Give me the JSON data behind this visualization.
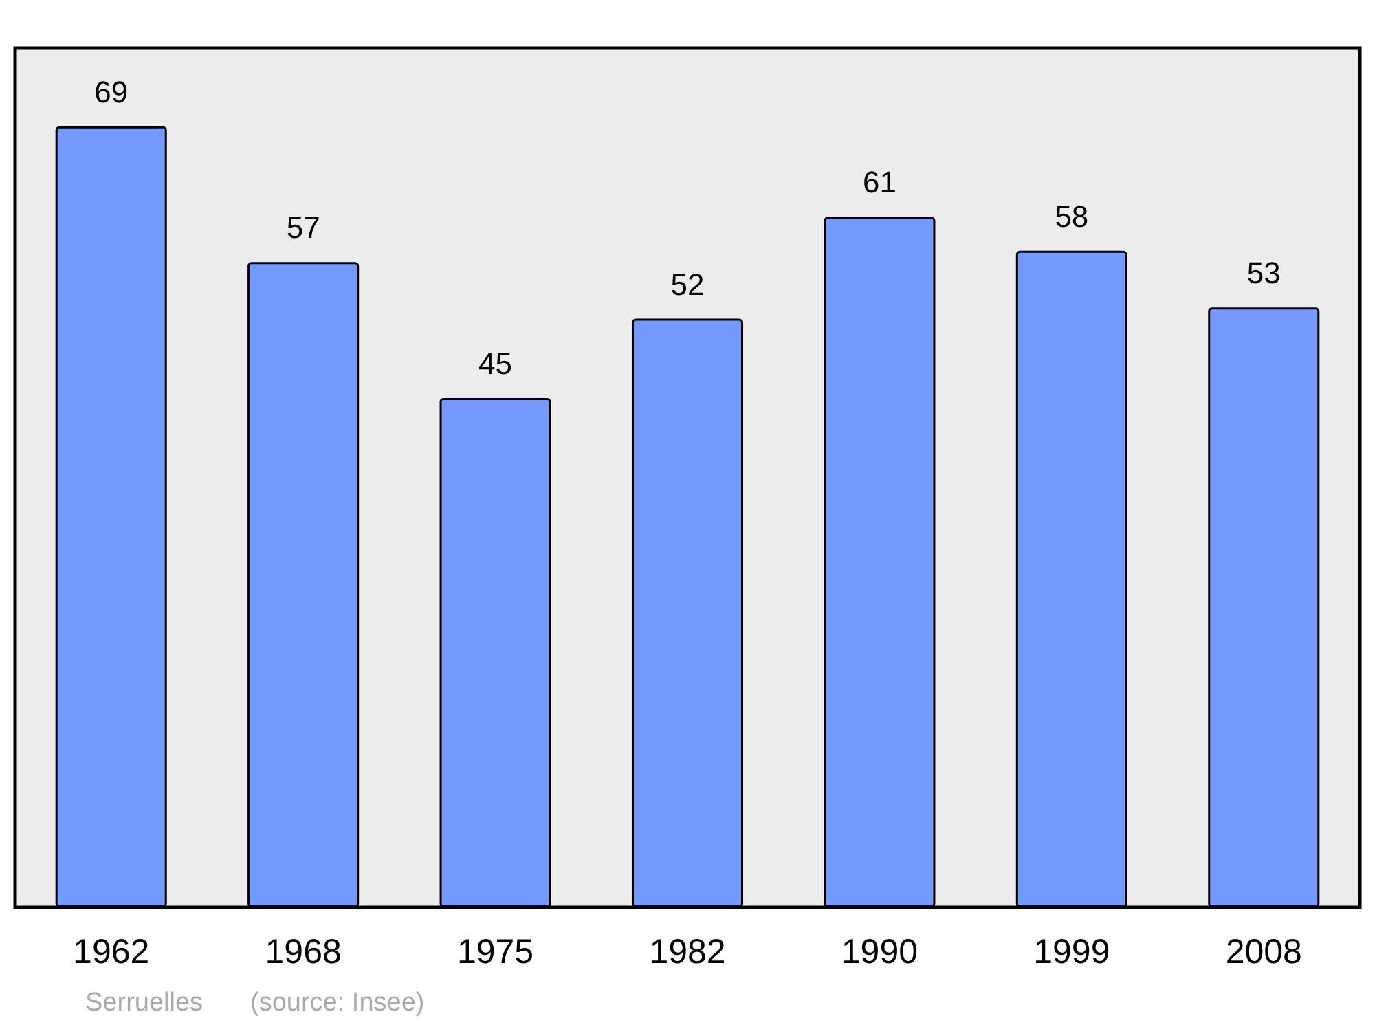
{
  "chart_data": {
    "type": "bar",
    "categories": [
      "1962",
      "1968",
      "1975",
      "1982",
      "1990",
      "1999",
      "2008"
    ],
    "values": [
      69,
      57,
      45,
      52,
      61,
      58,
      53
    ],
    "color": "#7499ff",
    "data_labels": true,
    "annotations": [
      "Serruelles",
      "(source: Insee)"
    ]
  }
}
